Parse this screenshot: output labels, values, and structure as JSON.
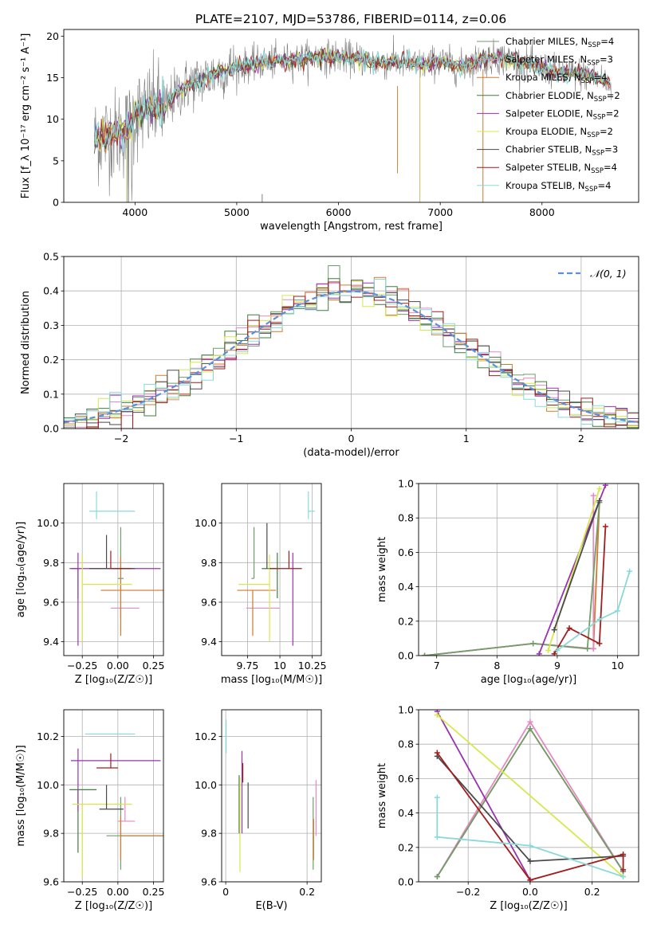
{
  "figure": {
    "title": "PLATE=2107, MJD=53786, FIBERID=0114, z=0.06"
  },
  "models": [
    {
      "name": "Chabrier MILES",
      "nssp": "4",
      "color": "#6f9e6a"
    },
    {
      "name": "Salpeter MILES",
      "nssp": "3",
      "color": "#e58ac2"
    },
    {
      "name": "Kroupa MILES",
      "nssp": "4",
      "color": "#d4782c"
    },
    {
      "name": "Chabrier ELODIE",
      "nssp": "2",
      "color": "#3f7f3f"
    },
    {
      "name": "Salpeter ELODIE",
      "nssp": "2",
      "color": "#9932b0"
    },
    {
      "name": "Kroupa ELODIE",
      "nssp": "2",
      "color": "#d6e84a"
    },
    {
      "name": "Chabrier STELIB",
      "nssp": "3",
      "color": "#4a4a4a"
    },
    {
      "name": "Salpeter STELIB",
      "nssp": "4",
      "color": "#a31d1d"
    },
    {
      "name": "Kroupa STELIB",
      "nssp": "4",
      "color": "#88dada"
    }
  ],
  "chart_data": [
    {
      "id": "spectrum",
      "type": "line",
      "xlabel": "wavelength [Angstrom, rest frame]",
      "ylabel": "Flux [f_λ 10⁻¹⁷ erg cm⁻² s⁻¹ A⁻¹]",
      "xlim": [
        3300,
        8950
      ],
      "ylim": [
        0,
        20.8
      ],
      "xticks": [
        4000,
        5000,
        6000,
        7000,
        8000
      ],
      "yticks": [
        0,
        5,
        10,
        15,
        20
      ],
      "legend_position": "top-right",
      "continuum": {
        "x": [
          3600,
          3700,
          3800,
          3900,
          3950,
          4000,
          4100,
          4200,
          4300,
          4400,
          4500,
          4600,
          4700,
          4800,
          4900,
          5000,
          5200,
          5400,
          5600,
          5800,
          6000,
          6200,
          6400,
          6600,
          6800,
          7000,
          7200,
          7400,
          7600,
          7800,
          8000,
          8200,
          8400,
          8600,
          8680
        ],
        "y": [
          7.5,
          8.0,
          8.2,
          8.5,
          9.0,
          10.5,
          10.8,
          11.6,
          11.3,
          13.0,
          14.0,
          14.5,
          15.0,
          15.5,
          16.0,
          16.3,
          16.7,
          17.0,
          17.2,
          17.5,
          17.5,
          17.3,
          16.8,
          16.9,
          16.5,
          17.0,
          16.2,
          17.2,
          17.4,
          16.8,
          16.2,
          15.5,
          15.4,
          14.8,
          14.0
        ]
      }
    },
    {
      "id": "residuals",
      "type": "line",
      "xlabel": "(data-model)/error",
      "ylabel": "Normed distribution",
      "xlim": [
        -2.5,
        2.5
      ],
      "ylim": [
        0,
        0.5
      ],
      "xticks": [
        -2,
        -1,
        0,
        1,
        2
      ],
      "yticks": [
        0.0,
        0.1,
        0.2,
        0.3,
        0.4,
        0.5
      ],
      "reference_label": "𝒩(0, 1)",
      "legend_position": "top-right"
    },
    {
      "id": "age_vs_Z",
      "type": "scatter",
      "xlabel": "Z [log₁₀(Z/Z☉)]",
      "ylabel": "age  [log₁₀(age/yr)]",
      "xlim": [
        -0.38,
        0.32
      ],
      "ylim": [
        9.33,
        10.2
      ],
      "xticks": [
        -0.25,
        0.0,
        0.25
      ],
      "yticks": [
        9.4,
        9.6,
        9.8,
        10.0
      ],
      "points": [
        {
          "x": 0.02,
          "y": 9.72,
          "xerr": [
            0.02,
            0.02
          ],
          "yerr": [
            0.2,
            0.26
          ]
        },
        {
          "x": 0.05,
          "y": 9.57,
          "xerr": [
            0.1,
            0.1
          ],
          "yerr": [
            0.0,
            0.0
          ]
        },
        {
          "x": 0.02,
          "y": 9.66,
          "xerr": [
            0.14,
            0.3
          ],
          "yerr": [
            0.23,
            0.17
          ]
        },
        {
          "x": -0.28,
          "y": 9.77,
          "xerr": [
            0.06,
            0.0
          ],
          "yerr": [
            0.15,
            0.0
          ]
        },
        {
          "x": -0.28,
          "y": 9.77,
          "xerr": [
            0.05,
            0.58
          ],
          "yerr": [
            0.39,
            0.08
          ]
        },
        {
          "x": -0.25,
          "y": 9.69,
          "xerr": [
            0.0,
            0.35
          ],
          "yerr": [
            0.29,
            0.15
          ]
        },
        {
          "x": -0.08,
          "y": 9.77,
          "xerr": [
            0.12,
            0.2
          ],
          "yerr": [
            0.0,
            0.17
          ]
        },
        {
          "x": -0.05,
          "y": 9.77,
          "xerr": [
            0.0,
            0.15
          ],
          "yerr": [
            0.0,
            0.09
          ]
        },
        {
          "x": -0.15,
          "y": 10.06,
          "xerr": [
            0.05,
            0.27
          ],
          "yerr": [
            0.04,
            0.1
          ]
        }
      ]
    },
    {
      "id": "age_vs_mass",
      "type": "scatter",
      "xlabel": "mass [log₁₀(M/M☉)]",
      "ylabel": "",
      "xlim": [
        9.55,
        10.32
      ],
      "ylim": [
        9.33,
        10.2
      ],
      "xticks": [
        9.75,
        10.0,
        10.25
      ],
      "yticks": [
        9.4,
        9.6,
        9.8,
        10.0
      ],
      "points": [
        {
          "x": 9.8,
          "y": 9.72,
          "xerr": [
            0.02,
            0.0
          ],
          "yerr": [
            0.0,
            0.26
          ]
        },
        {
          "x": 9.85,
          "y": 9.57,
          "xerr": [
            0.11,
            0.15
          ],
          "yerr": [
            0.0,
            0.0
          ]
        },
        {
          "x": 9.79,
          "y": 9.66,
          "xerr": [
            0.12,
            0.18
          ],
          "yerr": [
            0.23,
            0.0
          ]
        },
        {
          "x": 9.98,
          "y": 9.77,
          "xerr": [
            0.12,
            0.0
          ],
          "yerr": [
            0.15,
            0.08
          ]
        },
        {
          "x": 10.1,
          "y": 9.77,
          "xerr": [
            0.0,
            0.0
          ],
          "yerr": [
            0.39,
            0.08
          ]
        },
        {
          "x": 9.92,
          "y": 9.69,
          "xerr": [
            0.24,
            0.0
          ],
          "yerr": [
            0.29,
            0.15
          ]
        },
        {
          "x": 9.9,
          "y": 9.77,
          "xerr": [
            0.0,
            0.0
          ],
          "yerr": [
            0.0,
            0.23
          ]
        },
        {
          "x": 10.07,
          "y": 9.77,
          "xerr": [
            0.15,
            0.1
          ],
          "yerr": [
            0.0,
            0.09
          ]
        },
        {
          "x": 10.22,
          "y": 10.06,
          "xerr": [
            0.0,
            0.05
          ],
          "yerr": [
            0.04,
            0.1
          ]
        }
      ]
    },
    {
      "id": "weight_vs_age",
      "type": "line",
      "xlabel": "age  [log₁₀(age/yr)]",
      "ylabel": "mass weight",
      "xlim": [
        6.7,
        10.35
      ],
      "ylim": [
        0,
        1
      ],
      "xticks": [
        7,
        8,
        9,
        10
      ],
      "yticks": [
        0.0,
        0.2,
        0.4,
        0.6,
        0.8,
        1.0
      ],
      "series": [
        {
          "x": [
            6.8,
            8.6,
            9.6,
            9.7
          ],
          "y": [
            0.0,
            0.07,
            0.04,
            0.89
          ]
        },
        {
          "x": [
            6.8,
            8.6,
            9.6,
            9.6
          ],
          "y": [
            0.0,
            0.07,
            0.04,
            0.93
          ]
        },
        {
          "x": [
            6.8,
            8.6,
            9.5,
            9.7
          ],
          "y": [
            0.0,
            0.07,
            0.04,
            0.89
          ]
        },
        {
          "x": [
            8.7,
            9.8
          ],
          "y": [
            0.01,
            0.99
          ]
        },
        {
          "x": [
            8.85,
            9.7
          ],
          "y": [
            0.03,
            0.97
          ]
        },
        {
          "x": [
            8.95,
            9.7
          ],
          "y": [
            0.15,
            0.9
          ]
        },
        {
          "x": [
            8.95,
            9.2,
            9.7,
            9.8
          ],
          "y": [
            0.01,
            0.16,
            0.07,
            0.75
          ]
        },
        {
          "x": [
            9.0,
            9.7,
            10.0,
            10.2
          ],
          "y": [
            0.03,
            0.21,
            0.26,
            0.49
          ]
        }
      ]
    },
    {
      "id": "mass_vs_Z",
      "type": "scatter",
      "xlabel": "Z [log₁₀(Z/Z☉)]",
      "ylabel": "mass [log₁₀(M/M☉)]",
      "xlim": [
        -0.38,
        0.32
      ],
      "ylim": [
        9.6,
        10.31
      ],
      "xticks": [
        -0.25,
        0.0,
        0.25
      ],
      "yticks": [
        9.6,
        9.8,
        10.0,
        10.2
      ],
      "points": [
        {
          "x": 0.02,
          "y": 9.79,
          "xerr": [
            0.1,
            0.3
          ],
          "yerr": [
            0.14,
            0.16
          ]
        },
        {
          "x": 0.05,
          "y": 9.85,
          "xerr": [
            0.05,
            0.07
          ],
          "yerr": [
            0.0,
            0.1
          ]
        },
        {
          "x": 0.02,
          "y": 9.79,
          "xerr": [
            0.0,
            0.3
          ],
          "yerr": [
            0.1,
            0.08
          ]
        },
        {
          "x": -0.28,
          "y": 9.98,
          "xerr": [
            0.06,
            0.13
          ],
          "yerr": [
            0.26,
            0.0
          ]
        },
        {
          "x": -0.28,
          "y": 10.1,
          "xerr": [
            0.05,
            0.58
          ],
          "yerr": [
            0.21,
            0.05
          ]
        },
        {
          "x": -0.25,
          "y": 9.92,
          "xerr": [
            0.07,
            0.35
          ],
          "yerr": [
            0.3,
            0.0
          ]
        },
        {
          "x": -0.08,
          "y": 9.9,
          "xerr": [
            0.05,
            0.12
          ],
          "yerr": [
            0.0,
            0.1
          ]
        },
        {
          "x": -0.05,
          "y": 10.07,
          "xerr": [
            0.1,
            0.05
          ],
          "yerr": [
            0.0,
            0.06
          ]
        },
        {
          "x": -0.15,
          "y": 10.21,
          "xerr": [
            0.08,
            0.27
          ],
          "yerr": [
            0.0,
            0.0
          ]
        }
      ]
    },
    {
      "id": "mass_vs_ebv",
      "type": "scatter",
      "xlabel": "E(B-V)",
      "ylabel": "",
      "xlim": [
        -0.01,
        0.235
      ],
      "ylim": [
        9.6,
        10.31
      ],
      "xticks": [
        0.0,
        0.2
      ],
      "yticks": [
        9.6,
        9.8,
        10.0,
        10.2
      ],
      "points": [
        {
          "x": 0.215,
          "y": 9.79,
          "yerr": [
            0.14,
            0.16
          ]
        },
        {
          "x": 0.222,
          "y": 9.85,
          "yerr": [
            0.06,
            0.17
          ]
        },
        {
          "x": 0.216,
          "y": 9.79,
          "yerr": [
            0.1,
            0.07
          ]
        },
        {
          "x": 0.033,
          "y": 9.98,
          "yerr": [
            0.18,
            0.06
          ]
        },
        {
          "x": 0.04,
          "y": 10.1,
          "yerr": [
            0.3,
            0.04
          ]
        },
        {
          "x": 0.035,
          "y": 9.92,
          "yerr": [
            0.28,
            0.11
          ]
        },
        {
          "x": 0.055,
          "y": 9.9,
          "yerr": [
            0.08,
            0.11
          ]
        },
        {
          "x": 0.042,
          "y": 10.07,
          "yerr": [
            0.06,
            0.02
          ]
        },
        {
          "x": 0.001,
          "y": 10.21,
          "yerr": [
            0.08,
            0.06
          ]
        }
      ]
    },
    {
      "id": "weight_vs_Z",
      "type": "line",
      "xlabel": "Z [log₁₀(Z/Z☉)]",
      "ylabel": "mass weight",
      "xlim": [
        -0.36,
        0.35
      ],
      "ylim": [
        0,
        1
      ],
      "xticks": [
        -0.2,
        0.0,
        0.2
      ],
      "yticks": [
        0.0,
        0.2,
        0.4,
        0.6,
        0.8,
        1.0
      ],
      "series": [
        {
          "x": [
            -0.3,
            0.0,
            0.3
          ],
          "y": [
            0.03,
            0.89,
            0.06
          ]
        },
        {
          "x": [
            -0.3,
            0.0,
            0.3
          ],
          "y": [
            0.03,
            0.93,
            0.06
          ]
        },
        {
          "x": [
            -0.3,
            0.0,
            0.3
          ],
          "y": [
            0.03,
            0.89,
            0.06
          ]
        },
        {
          "x": [
            -0.3,
            0.0
          ],
          "y": [
            0.99,
            0.01
          ]
        },
        {
          "x": [
            -0.3,
            0.3
          ],
          "y": [
            0.97,
            0.03
          ]
        },
        {
          "x": [
            -0.3,
            0.0,
            0.3
          ],
          "y": [
            0.73,
            0.12,
            0.15
          ]
        },
        {
          "x": [
            -0.3,
            0.0,
            0.3,
            0.3
          ],
          "y": [
            0.75,
            0.01,
            0.16,
            0.07
          ]
        },
        {
          "x": [
            -0.3,
            -0.3,
            0.0,
            0.3
          ],
          "y": [
            0.49,
            0.26,
            0.21,
            0.03
          ]
        }
      ]
    }
  ]
}
